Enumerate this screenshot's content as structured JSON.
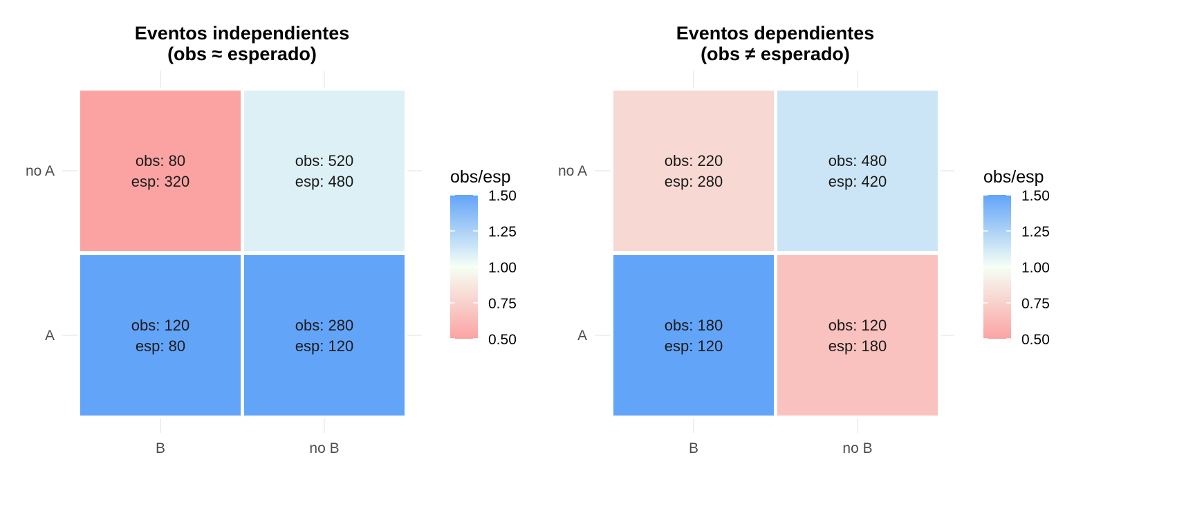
{
  "chart_data": [
    {
      "type": "heatmap",
      "title_lines": [
        "Eventos independientes",
        "(obs ≈ esperado)"
      ],
      "x_categories": [
        "B",
        "no B"
      ],
      "y_categories": [
        "A",
        "no A"
      ],
      "cells": [
        {
          "x": "B",
          "y": "no A",
          "obs": 80,
          "esp": 320,
          "ratio": 0.25
        },
        {
          "x": "no B",
          "y": "no A",
          "obs": 520,
          "esp": 480,
          "ratio": 1.083
        },
        {
          "x": "B",
          "y": "A",
          "obs": 120,
          "esp": 80,
          "ratio": 1.5
        },
        {
          "x": "no B",
          "y": "A",
          "obs": 280,
          "esp": 120,
          "ratio": 2.333
        }
      ],
      "legend": {
        "title": "obs/esp",
        "range": [
          0.5,
          1.5
        ],
        "ticks": [
          "1.50",
          "1.25",
          "1.00",
          "0.75",
          "0.50"
        ]
      }
    },
    {
      "type": "heatmap",
      "title_lines": [
        "Eventos dependientes",
        "(obs ≠ esperado)"
      ],
      "x_categories": [
        "B",
        "no B"
      ],
      "y_categories": [
        "A",
        "no A"
      ],
      "cells": [
        {
          "x": "B",
          "y": "no A",
          "obs": 220,
          "esp": 280,
          "ratio": 0.786
        },
        {
          "x": "no B",
          "y": "no A",
          "obs": 480,
          "esp": 420,
          "ratio": 1.143
        },
        {
          "x": "B",
          "y": "A",
          "obs": 180,
          "esp": 120,
          "ratio": 1.5
        },
        {
          "x": "no B",
          "y": "A",
          "obs": 120,
          "esp": 180,
          "ratio": 0.667
        }
      ],
      "legend": {
        "title": "obs/esp",
        "range": [
          0.5,
          1.5
        ],
        "ticks": [
          "1.50",
          "1.25",
          "1.00",
          "0.75",
          "0.50"
        ]
      }
    }
  ],
  "labels": {
    "obs_prefix": "obs: ",
    "esp_prefix": "esp: "
  },
  "colors": {
    "low": "#fba3a3",
    "mid": "#f5fff5",
    "high": "#62a4f8",
    "grid": "#ebebeb",
    "cell_border": "#ffffff"
  }
}
